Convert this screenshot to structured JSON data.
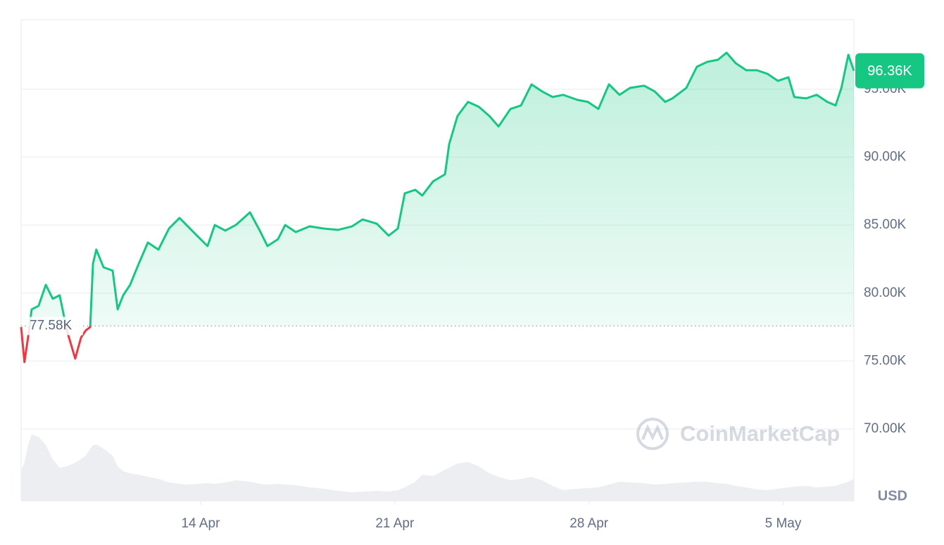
{
  "chart_data": {
    "type": "line",
    "x": [
      7.53,
      7.65,
      7.78,
      7.91,
      8.16,
      8.42,
      8.67,
      8.92,
      9.18,
      9.48,
      9.69,
      9.86,
      10.02,
      10.12,
      10.24,
      10.5,
      10.83,
      11.01,
      11.21,
      11.46,
      11.77,
      12.1,
      12.48,
      12.86,
      13.24,
      13.49,
      13.87,
      14.25,
      14.51,
      14.89,
      15.27,
      15.78,
      16.16,
      16.41,
      16.79,
      17.05,
      17.43,
      17.93,
      18.44,
      18.95,
      19.46,
      19.84,
      20.35,
      20.78,
      21.11,
      21.36,
      21.74,
      21.99,
      22.38,
      22.81,
      22.96,
      23.26,
      23.64,
      24.03,
      24.41,
      24.74,
      25.17,
      25.55,
      25.93,
      26.31,
      26.69,
      27.07,
      27.58,
      27.96,
      28.34,
      28.72,
      29.1,
      29.48,
      29.99,
      30.37,
      30.75,
      31.01,
      31.51,
      31.89,
      32.27,
      32.65,
      32.96,
      33.29,
      33.67,
      34.05,
      34.43,
      34.81,
      35.19,
      35.4,
      35.83,
      36.21,
      36.59,
      36.89,
      37.1,
      37.35,
      37.55
    ],
    "values": [
      77500,
      74920,
      76730,
      78800,
      79060,
      80610,
      79580,
      79840,
      77250,
      75180,
      76730,
      77250,
      77500,
      82160,
      83200,
      81900,
      81650,
      78800,
      79840,
      80610,
      82160,
      83720,
      83200,
      84750,
      85530,
      85010,
      84230,
      83460,
      85010,
      84600,
      85010,
      85940,
      84490,
      83460,
      83970,
      85010,
      84490,
      84910,
      84750,
      84650,
      84910,
      85420,
      85110,
      84230,
      84750,
      87340,
      87600,
      87180,
      88220,
      88740,
      90960,
      93030,
      94070,
      93710,
      93030,
      92260,
      93550,
      93810,
      95360,
      94840,
      94430,
      94590,
      94220,
      94070,
      93550,
      95360,
      94590,
      95100,
      95260,
      94840,
      94070,
      94330,
      95100,
      96660,
      97020,
      97170,
      97690,
      96920,
      96400,
      96400,
      96140,
      95620,
      95880,
      94430,
      94330,
      94590,
      94070,
      93810,
      95100,
      97540,
      96360
    ],
    "volume": [
      45,
      55,
      80,
      95,
      92,
      80,
      60,
      48,
      50,
      55,
      60,
      65,
      75,
      80,
      81,
      75,
      65,
      50,
      43,
      40,
      38,
      35,
      32,
      27,
      25,
      24,
      25,
      26,
      25,
      27,
      30,
      28,
      25,
      24,
      25,
      24,
      23,
      20,
      18,
      15,
      13,
      14,
      15,
      14,
      16,
      20,
      28,
      38,
      36,
      45,
      48,
      54,
      56,
      50,
      40,
      35,
      30,
      32,
      35,
      30,
      22,
      16,
      18,
      19,
      20,
      24,
      28,
      27,
      26,
      24,
      25,
      26,
      27,
      28,
      28,
      26,
      25,
      22,
      20,
      17,
      16,
      18,
      20,
      21,
      22,
      20,
      21,
      22,
      25,
      28,
      32
    ],
    "color": "#16c784",
    "down_color": "#ea3943",
    "baseline": {
      "value": 77580,
      "label": "77.58K"
    },
    "current": {
      "value": 96360,
      "label": "96.36K"
    },
    "xlim": [
      7.53,
      37.55
    ],
    "xticks": [
      {
        "value": 14,
        "label": "14 Apr"
      },
      {
        "value": 21,
        "label": "21 Apr"
      },
      {
        "value": 28,
        "label": "28 Apr"
      },
      {
        "value": 35,
        "label": "5 May"
      }
    ],
    "ylim": [
      64670,
      100120
    ],
    "yticks": [
      {
        "value": 70000,
        "label": "70.00K"
      },
      {
        "value": 75000,
        "label": "75.00K"
      },
      {
        "value": 80000,
        "label": "80.00K"
      },
      {
        "value": 85000,
        "label": "85.00K"
      },
      {
        "value": 90000,
        "label": "90.00K"
      },
      {
        "value": 95000,
        "label": "95.00K"
      }
    ],
    "grid": true,
    "unit": "USD",
    "watermark": "CoinMarketCap"
  }
}
